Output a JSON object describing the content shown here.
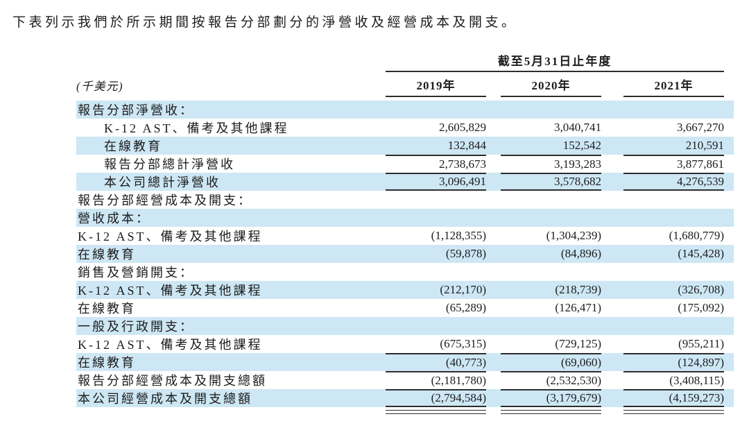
{
  "intro": "下表列示我們於所示期間按報告分部劃分的淨營收及經營成本及開支。",
  "table": {
    "unit_label": "(千美元)",
    "period_header": "截至5月31日止年度",
    "year_headers": [
      "2019年",
      "2020年",
      "2021年"
    ],
    "rows": [
      {
        "label": "報告分部淨營收：",
        "values": [
          "",
          "",
          ""
        ]
      },
      {
        "label": "K-12 AST、備考及其他課程",
        "values": [
          "2,605,829",
          "3,040,741",
          "3,667,270"
        ]
      },
      {
        "label": "在線教育",
        "values": [
          "132,844",
          "152,542",
          "210,591"
        ]
      },
      {
        "label": "報告分部總計淨營收",
        "values": [
          "2,738,673",
          "3,193,283",
          "3,877,861"
        ]
      },
      {
        "label": "本公司總計淨營收",
        "values": [
          "3,096,491",
          "3,578,682",
          "4,276,539"
        ]
      },
      {
        "label": "報告分部經營成本及開支：",
        "values": [
          "",
          "",
          ""
        ]
      },
      {
        "label": "營收成本：",
        "values": [
          "",
          "",
          ""
        ]
      },
      {
        "label": "K-12 AST、備考及其他課程",
        "values": [
          "(1,128,355)",
          "(1,304,239)",
          "(1,680,779)"
        ]
      },
      {
        "label": "在線教育",
        "values": [
          "(59,878)",
          "(84,896)",
          "(145,428)"
        ]
      },
      {
        "label": "銷售及營銷開支：",
        "values": [
          "",
          "",
          ""
        ]
      },
      {
        "label": "K-12 AST、備考及其他課程",
        "values": [
          "(212,170)",
          "(218,739)",
          "(326,708)"
        ]
      },
      {
        "label": "在線教育",
        "values": [
          "(65,289)",
          "(126,471)",
          "(175,092)"
        ]
      },
      {
        "label": "一般及行政開支：",
        "values": [
          "",
          "",
          ""
        ]
      },
      {
        "label": "K-12 AST、備考及其他課程",
        "values": [
          "(675,315)",
          "(729,125)",
          "(955,211)"
        ]
      },
      {
        "label": "在線教育",
        "values": [
          "(40,773)",
          "(69,060)",
          "(124,897)"
        ]
      },
      {
        "label": "報告分部經營成本及開支總額",
        "values": [
          "(2,181,780)",
          "(2,532,530)",
          "(3,408,115)"
        ]
      },
      {
        "label": "本公司經營成本及開支總額",
        "values": [
          "(2,794,584)",
          "(3,179,679)",
          "(4,159,273)"
        ]
      }
    ],
    "colors": {
      "row_highlight": "#cde7f4",
      "rule": "#2d2d2d",
      "text": "#1c1c1c",
      "background": "#ffffff"
    }
  }
}
